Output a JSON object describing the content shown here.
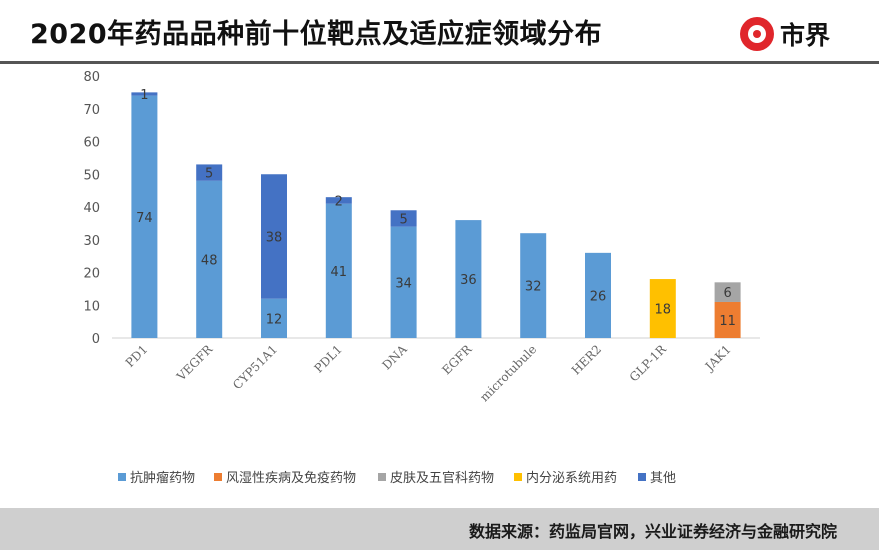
{
  "header": {
    "title": "2020年药品品种前十位靶点及适应症领域分布",
    "logo_text": "市界",
    "logo_icon": "shield-s-icon"
  },
  "footer": {
    "source": "数据来源：药监局官网，兴业证券经济与金融研究院"
  },
  "chart_data": {
    "type": "bar",
    "stacked": true,
    "title": "",
    "xlabel": "",
    "ylabel": "",
    "ylim": [
      0,
      80
    ],
    "yticks": [
      0,
      10,
      20,
      30,
      40,
      50,
      60,
      70,
      80
    ],
    "grid": false,
    "legend_position": "bottom",
    "categories": [
      "PD1",
      "VEGFR",
      "CYP51A1",
      "PDL1",
      "DNA",
      "EGFR",
      "microtubule",
      "HER2",
      "GLP-1R",
      "JAK1"
    ],
    "series": [
      {
        "name": "抗肿瘤药物",
        "color": "#5b9bd5",
        "values": [
          74,
          48,
          12,
          41,
          34,
          36,
          32,
          26,
          0,
          0
        ]
      },
      {
        "name": "风湿性疾病及免疫药物",
        "color": "#ed7d31",
        "values": [
          0,
          0,
          0,
          0,
          0,
          0,
          0,
          0,
          0,
          11
        ]
      },
      {
        "name": "皮肤及五官科药物",
        "color": "#a5a5a5",
        "values": [
          0,
          0,
          0,
          0,
          0,
          0,
          0,
          0,
          0,
          6
        ]
      },
      {
        "name": "内分泌系统用药",
        "color": "#ffc000",
        "values": [
          0,
          0,
          0,
          0,
          0,
          0,
          0,
          0,
          18,
          0
        ]
      },
      {
        "name": "其他",
        "color": "#4472c4",
        "values": [
          1,
          5,
          38,
          2,
          5,
          0,
          0,
          0,
          0,
          0
        ]
      }
    ]
  }
}
